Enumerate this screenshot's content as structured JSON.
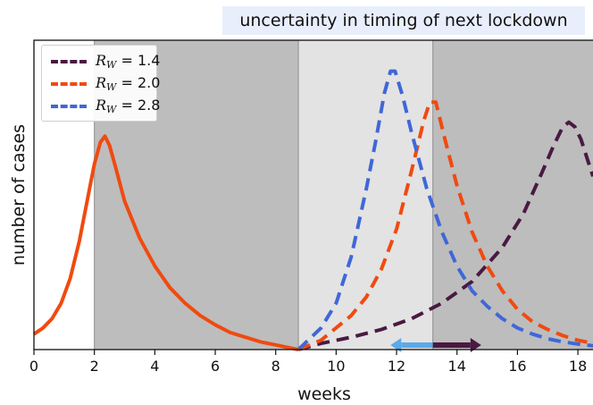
{
  "chart_data": {
    "type": "line",
    "xlabel": "weeks",
    "ylabel": "number of cases",
    "xlim": [
      0,
      18.5
    ],
    "ylim": [
      0,
      1
    ],
    "xticks": [
      0,
      2,
      4,
      6,
      8,
      10,
      12,
      14,
      16,
      18
    ],
    "grid": false,
    "legend_position": "top-left",
    "annotation": "uncertainty in timing of next lockdown",
    "shaded_regions": [
      {
        "from": 2.0,
        "to": 8.75,
        "color": "#bdbdbd"
      },
      {
        "from": 8.75,
        "to": 13.2,
        "color": "#e3e3e3"
      },
      {
        "from": 13.2,
        "to": 18.5,
        "color": "#bdbdbd"
      }
    ],
    "series": [
      {
        "label_var": "R",
        "label_sub": "W",
        "label_val": "= 1.4",
        "color": "#4a1942",
        "style": "dashed",
        "x": [
          8.75,
          9.5,
          10.5,
          11.5,
          12.5,
          13.5,
          14.5,
          15.5,
          16.2,
          16.8,
          17.2,
          17.5,
          17.7,
          17.9,
          18.1,
          18.3,
          18.5
        ],
        "y": [
          0.0,
          0.02,
          0.04,
          0.065,
          0.1,
          0.15,
          0.22,
          0.33,
          0.44,
          0.57,
          0.66,
          0.72,
          0.735,
          0.72,
          0.68,
          0.62,
          0.56
        ]
      },
      {
        "label_var": "R",
        "label_sub": "W",
        "label_val": "= 2.0",
        "color": "#f04a10",
        "style": "dashed",
        "x": [
          8.75,
          9.5,
          10.5,
          11.0,
          11.5,
          12.0,
          12.5,
          12.9,
          13.1,
          13.3,
          13.6,
          14.0,
          14.5,
          15.0,
          15.5,
          16.0,
          16.5,
          17.0,
          17.5,
          18.0,
          18.5
        ],
        "y": [
          0.0,
          0.03,
          0.11,
          0.17,
          0.26,
          0.39,
          0.58,
          0.74,
          0.8,
          0.8,
          0.68,
          0.53,
          0.38,
          0.27,
          0.19,
          0.13,
          0.09,
          0.065,
          0.045,
          0.03,
          0.02
        ]
      },
      {
        "label_var": "R",
        "label_sub": "W",
        "label_val": "= 2.8",
        "color": "#4067d8",
        "style": "dashed",
        "x": [
          8.75,
          9.5,
          10.0,
          10.5,
          11.0,
          11.3,
          11.6,
          11.8,
          11.95,
          12.2,
          12.5,
          13.0,
          13.5,
          14.0,
          14.5,
          15.0,
          15.5,
          16.0,
          16.5,
          17.0,
          17.5,
          18.0,
          18.5
        ],
        "y": [
          0.0,
          0.07,
          0.15,
          0.3,
          0.52,
          0.67,
          0.83,
          0.9,
          0.9,
          0.82,
          0.7,
          0.52,
          0.38,
          0.27,
          0.19,
          0.14,
          0.1,
          0.07,
          0.05,
          0.035,
          0.025,
          0.018,
          0.012
        ]
      },
      {
        "label": "",
        "color": "#f04a10",
        "style": "solid",
        "x": [
          0,
          0.3,
          0.6,
          0.9,
          1.2,
          1.5,
          1.8,
          2.0,
          2.2,
          2.35,
          2.5,
          2.7,
          3.0,
          3.5,
          4.0,
          4.5,
          5.0,
          5.5,
          6.0,
          6.5,
          7.0,
          7.5,
          8.0,
          8.5,
          8.75
        ],
        "y": [
          0.05,
          0.07,
          0.1,
          0.15,
          0.23,
          0.35,
          0.5,
          0.6,
          0.67,
          0.69,
          0.66,
          0.59,
          0.48,
          0.36,
          0.27,
          0.2,
          0.15,
          0.11,
          0.08,
          0.055,
          0.04,
          0.025,
          0.015,
          0.005,
          0.0
        ]
      }
    ],
    "arrows": [
      {
        "from": 13.2,
        "to": 11.8,
        "color": "#5aaae8"
      },
      {
        "from": 13.2,
        "to": 14.8,
        "color": "#4a1942"
      }
    ]
  }
}
